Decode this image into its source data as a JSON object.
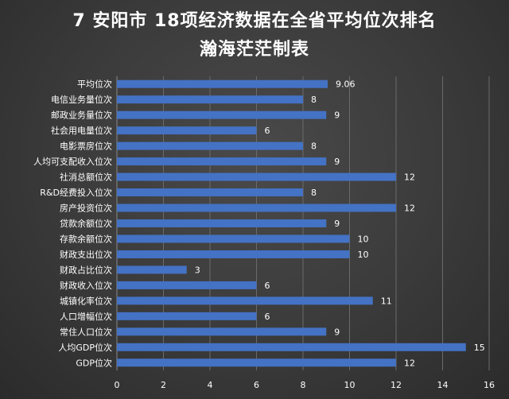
{
  "chart_data": {
    "type": "bar",
    "orientation": "horizontal",
    "title": "7 安阳市 18项经济数据在全省平均位次排名",
    "subtitle": "瀚海茫茫制表",
    "categories": [
      "平均位次",
      "电信业务量位次",
      "邮政业务量位次",
      "社会用电量位次",
      "电影票房位次",
      "人均可支配收入位次",
      "社消总额位次",
      "R&D经费投入位次",
      "房产投资位次",
      "贷款余额位次",
      "存款余额位次",
      "财政支出位次",
      "财政占比位次",
      "财政收入位次",
      "城镇化率位次",
      "人口增幅位次",
      "常住人口位次",
      "人均GDP位次",
      "GDP位次"
    ],
    "values": [
      9.06,
      8,
      9,
      6,
      8,
      9,
      12,
      8,
      12,
      9,
      10,
      10,
      3,
      6,
      11,
      6,
      9,
      15,
      12
    ],
    "data_labels": [
      "9.06",
      "8",
      "9",
      "6",
      "8",
      "9",
      "12",
      "8",
      "12",
      "9",
      "10",
      "10",
      "3",
      "6",
      "11",
      "6",
      "9",
      "15",
      "12"
    ],
    "xlim": [
      0,
      16
    ],
    "xticks": [
      0,
      2,
      4,
      6,
      8,
      10,
      12,
      14,
      16
    ],
    "grid": true,
    "legend": "none",
    "bar_color": "#4472c4"
  }
}
